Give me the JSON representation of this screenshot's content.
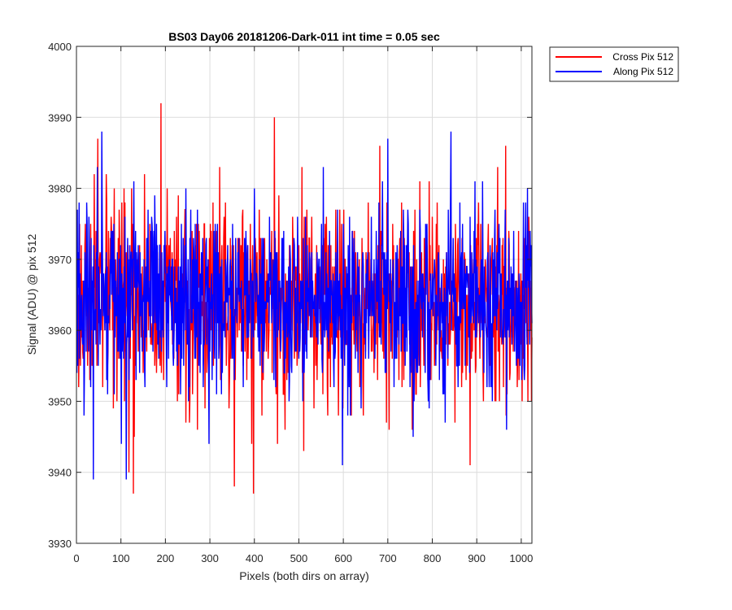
{
  "chart_data": {
    "type": "line",
    "title": "BS03 Day06 20181206-Dark-011 int time = 0.05 sec",
    "xlabel": "Pixels (both dirs on array)",
    "ylabel": "Signal (ADU) @ pix 512",
    "xlim": [
      0,
      1024
    ],
    "ylim": [
      3930,
      4000
    ],
    "xticks": [
      0,
      100,
      200,
      300,
      400,
      500,
      600,
      700,
      800,
      900,
      1000
    ],
    "yticks": [
      3930,
      3940,
      3950,
      3960,
      3970,
      3980,
      3990,
      4000
    ],
    "grid": true,
    "legend_position": "outside-top-right",
    "series": [
      {
        "name": "Cross Pix 512",
        "color": "#ff0000",
        "mean": 3964,
        "std": 6.8,
        "seed": 17,
        "n_points": 1024,
        "spikes": [
          {
            "x": 190,
            "y": 3992
          },
          {
            "x": 445,
            "y": 3990
          },
          {
            "x": 128,
            "y": 3937
          },
          {
            "x": 398,
            "y": 3937
          },
          {
            "x": 355,
            "y": 3938
          },
          {
            "x": 48,
            "y": 3987
          },
          {
            "x": 885,
            "y": 3941
          },
          {
            "x": 118,
            "y": 3940
          },
          {
            "x": 682,
            "y": 3986
          },
          {
            "x": 965,
            "y": 3986
          }
        ]
      },
      {
        "name": "Along Pix 512",
        "color": "#0000ff",
        "mean": 3964,
        "std": 6.5,
        "seed": 91,
        "n_points": 1024,
        "spikes": [
          {
            "x": 57,
            "y": 3988
          },
          {
            "x": 842,
            "y": 3988
          },
          {
            "x": 38,
            "y": 3939
          },
          {
            "x": 112,
            "y": 3939
          },
          {
            "x": 598,
            "y": 3941
          },
          {
            "x": 700,
            "y": 3987
          }
        ]
      }
    ]
  }
}
